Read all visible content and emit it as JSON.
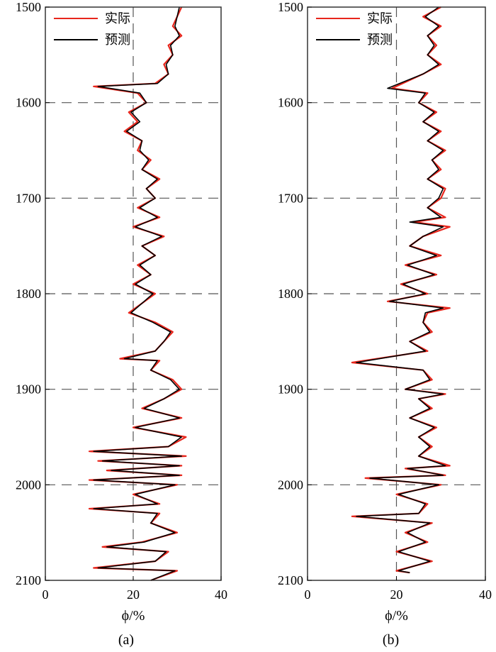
{
  "colors": {
    "actual": "#e8261c",
    "predicted": "#000000",
    "grid": "#555555",
    "frame": "#333333"
  },
  "legend": {
    "actual": "实际",
    "predicted": "预测",
    "placement": "top-left"
  },
  "chart_data": [
    {
      "type": "line",
      "panel_label": "(a)",
      "xlabel": "ϕ/%",
      "x_ticks": [
        0,
        20,
        40
      ],
      "y_ticks": [
        1500,
        1600,
        1700,
        1800,
        1900,
        2000,
        2100
      ],
      "xlim": [
        0,
        40
      ],
      "ylim": [
        1500,
        2100
      ],
      "y_inverted": true,
      "grid": "dashed",
      "series": [
        {
          "name": "实际",
          "color": "#e8261c",
          "depth": [
            1500,
            1510,
            1520,
            1530,
            1540,
            1550,
            1560,
            1570,
            1580,
            1583,
            1590,
            1600,
            1610,
            1620,
            1630,
            1640,
            1650,
            1660,
            1670,
            1680,
            1690,
            1700,
            1710,
            1720,
            1730,
            1740,
            1750,
            1760,
            1770,
            1780,
            1790,
            1800,
            1810,
            1820,
            1830,
            1840,
            1850,
            1860,
            1868,
            1870,
            1880,
            1890,
            1900,
            1910,
            1920,
            1930,
            1940,
            1950,
            1960,
            1965,
            1970,
            1975,
            1980,
            1985,
            1990,
            1995,
            2000,
            2010,
            2020,
            2025,
            2030,
            2040,
            2050,
            2060,
            2065,
            2070,
            2080,
            2087,
            2090,
            2100
          ],
          "values": [
            31,
            30,
            29,
            31,
            28,
            29,
            27,
            28,
            25,
            11,
            21,
            23,
            19,
            21,
            18,
            22,
            21,
            24,
            22,
            26,
            23,
            25,
            21,
            26,
            20,
            27,
            22,
            25,
            21,
            24,
            20,
            25,
            22,
            19,
            25,
            29,
            27,
            25,
            17,
            26,
            24,
            29,
            31,
            27,
            22,
            31,
            20,
            32,
            28,
            10,
            32,
            12,
            31,
            14,
            31,
            10,
            30,
            20,
            26,
            10,
            26,
            24,
            30,
            22,
            13,
            28,
            25,
            11,
            30,
            24
          ]
        },
        {
          "name": "预测",
          "color": "#000000",
          "depth": [
            1500,
            1510,
            1520,
            1530,
            1540,
            1550,
            1560,
            1570,
            1580,
            1583,
            1590,
            1600,
            1610,
            1620,
            1630,
            1640,
            1650,
            1660,
            1670,
            1680,
            1690,
            1700,
            1710,
            1720,
            1730,
            1740,
            1750,
            1760,
            1770,
            1780,
            1790,
            1800,
            1810,
            1820,
            1830,
            1840,
            1850,
            1860,
            1868,
            1870,
            1880,
            1890,
            1900,
            1910,
            1920,
            1930,
            1940,
            1950,
            1960,
            1965,
            1970,
            1975,
            1980,
            1985,
            1990,
            1995,
            2000,
            2010,
            2020,
            2025,
            2030,
            2040,
            2050,
            2060,
            2065,
            2070,
            2080,
            2087,
            2090,
            2100
          ],
          "values": [
            30.5,
            30,
            29.5,
            30.5,
            28.5,
            29,
            27.5,
            28,
            25.5,
            12,
            21.5,
            23,
            19.5,
            21.5,
            18.5,
            22,
            21.5,
            23.5,
            22,
            25.5,
            23,
            25,
            21.5,
            25.5,
            20.5,
            26.5,
            22,
            25,
            21.5,
            24,
            20.5,
            24.5,
            22,
            19.5,
            24.5,
            28.5,
            27,
            25,
            18,
            25.5,
            24,
            28.5,
            30.5,
            27,
            22.5,
            30.5,
            20.5,
            31,
            28,
            11,
            31,
            13,
            30.5,
            15,
            30.5,
            11,
            29.5,
            20.5,
            25.5,
            11,
            25.5,
            24,
            29.5,
            22.5,
            14,
            27.5,
            25,
            12,
            29.5,
            24
          ]
        }
      ]
    },
    {
      "type": "line",
      "panel_label": "(b)",
      "xlabel": "ϕ/%",
      "x_ticks": [
        0,
        20,
        40
      ],
      "y_ticks": [
        1500,
        1600,
        1700,
        1800,
        1900,
        2000,
        2100
      ],
      "xlim": [
        0,
        40
      ],
      "ylim": [
        1500,
        2100
      ],
      "y_inverted": true,
      "grid": "dashed",
      "series": [
        {
          "name": "实际",
          "color": "#e8261c",
          "depth": [
            1500,
            1510,
            1520,
            1530,
            1540,
            1550,
            1560,
            1570,
            1585,
            1590,
            1600,
            1610,
            1620,
            1630,
            1640,
            1650,
            1660,
            1670,
            1680,
            1690,
            1700,
            1710,
            1720,
            1725,
            1730,
            1740,
            1750,
            1760,
            1770,
            1780,
            1790,
            1800,
            1808,
            1815,
            1820,
            1830,
            1840,
            1850,
            1860,
            1872,
            1880,
            1890,
            1900,
            1905,
            1910,
            1920,
            1930,
            1940,
            1950,
            1960,
            1970,
            1980,
            1983,
            1990,
            1993,
            2000,
            2010,
            2020,
            2030,
            2033,
            2040,
            2050,
            2060,
            2070,
            2080,
            2090,
            2092
          ],
          "values": [
            30,
            26,
            30,
            27,
            29,
            27,
            30,
            26,
            19,
            27,
            25,
            29,
            26,
            30,
            27,
            31,
            28,
            30,
            27,
            31,
            30,
            27,
            31,
            24,
            32,
            26,
            23,
            30,
            22,
            29,
            21,
            27,
            18,
            32,
            27,
            26,
            28,
            23,
            27,
            10,
            26,
            28,
            22,
            31,
            25,
            28,
            23,
            29,
            25,
            28,
            25,
            32,
            22,
            31,
            13,
            30,
            20,
            27,
            25,
            10,
            28,
            22,
            27,
            20,
            28,
            20,
            23
          ]
        },
        {
          "name": "预测",
          "color": "#000000",
          "depth": [
            1500,
            1510,
            1520,
            1530,
            1540,
            1550,
            1560,
            1570,
            1585,
            1590,
            1600,
            1610,
            1620,
            1630,
            1640,
            1650,
            1660,
            1670,
            1680,
            1690,
            1700,
            1710,
            1720,
            1725,
            1730,
            1740,
            1750,
            1760,
            1770,
            1780,
            1790,
            1800,
            1808,
            1815,
            1820,
            1830,
            1840,
            1850,
            1860,
            1872,
            1880,
            1890,
            1900,
            1905,
            1910,
            1920,
            1930,
            1940,
            1950,
            1960,
            1970,
            1980,
            1983,
            1990,
            1993,
            2000,
            2010,
            2020,
            2030,
            2033,
            2040,
            2050,
            2060,
            2070,
            2080,
            2090,
            2092
          ],
          "values": [
            29.5,
            26.5,
            29.5,
            27,
            28.5,
            27,
            29.5,
            26,
            18,
            26.5,
            25,
            28.5,
            26,
            29.5,
            27,
            30.5,
            28,
            29.5,
            27,
            30.5,
            29.5,
            27,
            30,
            23,
            30.5,
            26,
            23,
            29,
            22.5,
            28.5,
            21.5,
            26.5,
            18.5,
            30.5,
            26.5,
            26,
            27.5,
            23,
            26.5,
            11,
            26,
            27.5,
            22,
            30.5,
            25,
            27.5,
            23,
            28.5,
            25,
            27.5,
            25,
            31,
            22.5,
            30.5,
            14,
            29.5,
            20.5,
            26.5,
            25,
            11,
            27.5,
            22.5,
            26.5,
            20.5,
            27.5,
            20.5,
            23
          ]
        }
      ]
    }
  ]
}
